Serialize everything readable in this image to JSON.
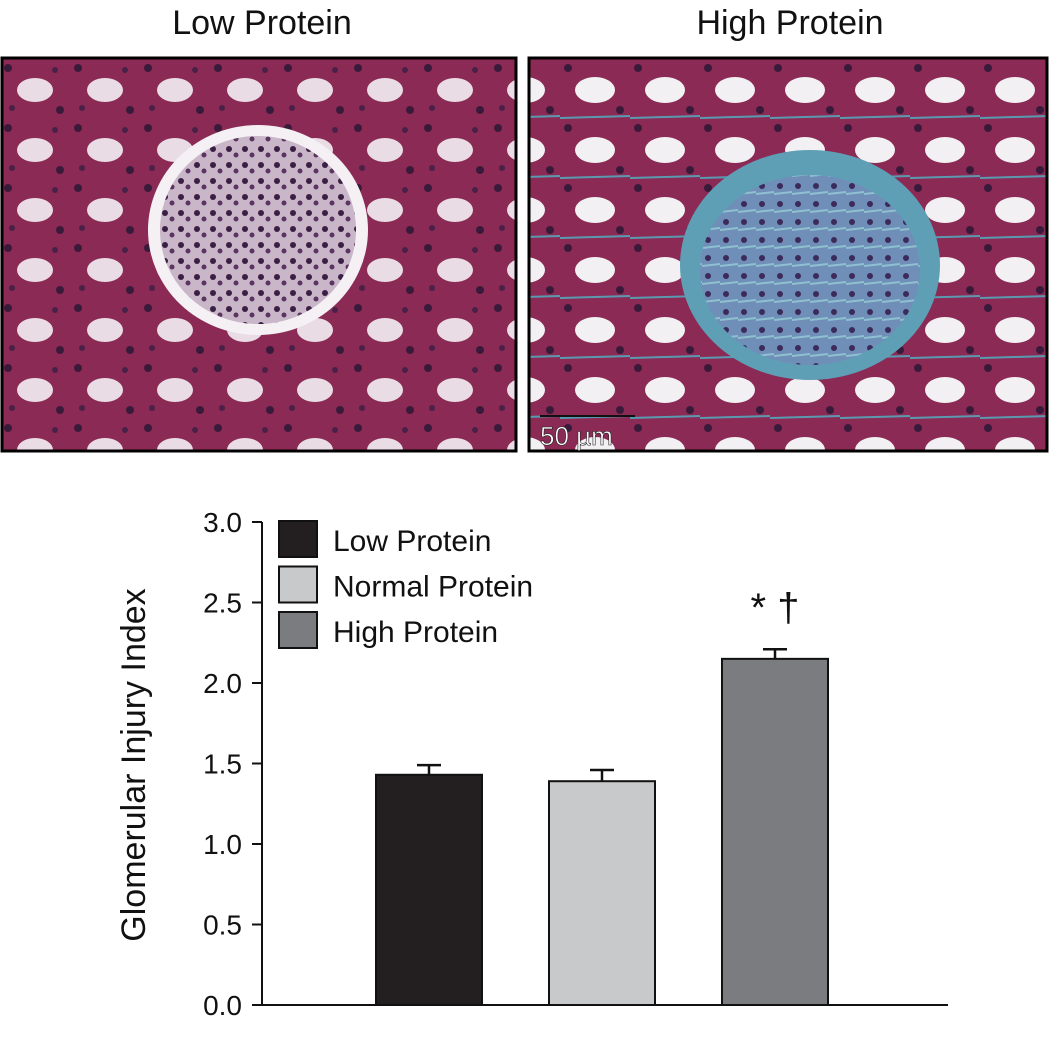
{
  "panels": [
    {
      "title": "Low Protein"
    },
    {
      "title": "High Protein",
      "scale_bar": "50 µm"
    }
  ],
  "chart_data": {
    "type": "bar",
    "ylabel": "Glomerular Injury Index",
    "series": [
      {
        "name": "Low Protein",
        "color": "#231f20",
        "values": [
          1.43
        ],
        "errors": [
          0.06
        ]
      },
      {
        "name": "Normal Protein",
        "color": "#c8c9cb",
        "values": [
          1.39
        ],
        "errors": [
          0.07
        ]
      },
      {
        "name": "High Protein",
        "color": "#7a7c80",
        "values": [
          2.15
        ],
        "errors": [
          0.06
        ]
      }
    ],
    "annotations": [
      {
        "series": 2,
        "text": "* †"
      }
    ],
    "ylim": [
      0,
      3
    ],
    "yticks": [
      {
        "value": 0,
        "label": "0.0"
      },
      {
        "value": 0.5,
        "label": "0.5"
      },
      {
        "value": 1,
        "label": "1.0"
      },
      {
        "value": 1.5,
        "label": "1.5"
      },
      {
        "value": 2,
        "label": "2.0"
      },
      {
        "value": 2.5,
        "label": "2.5"
      },
      {
        "value": 3,
        "label": "3.0"
      }
    ],
    "legend": "upper-left"
  }
}
